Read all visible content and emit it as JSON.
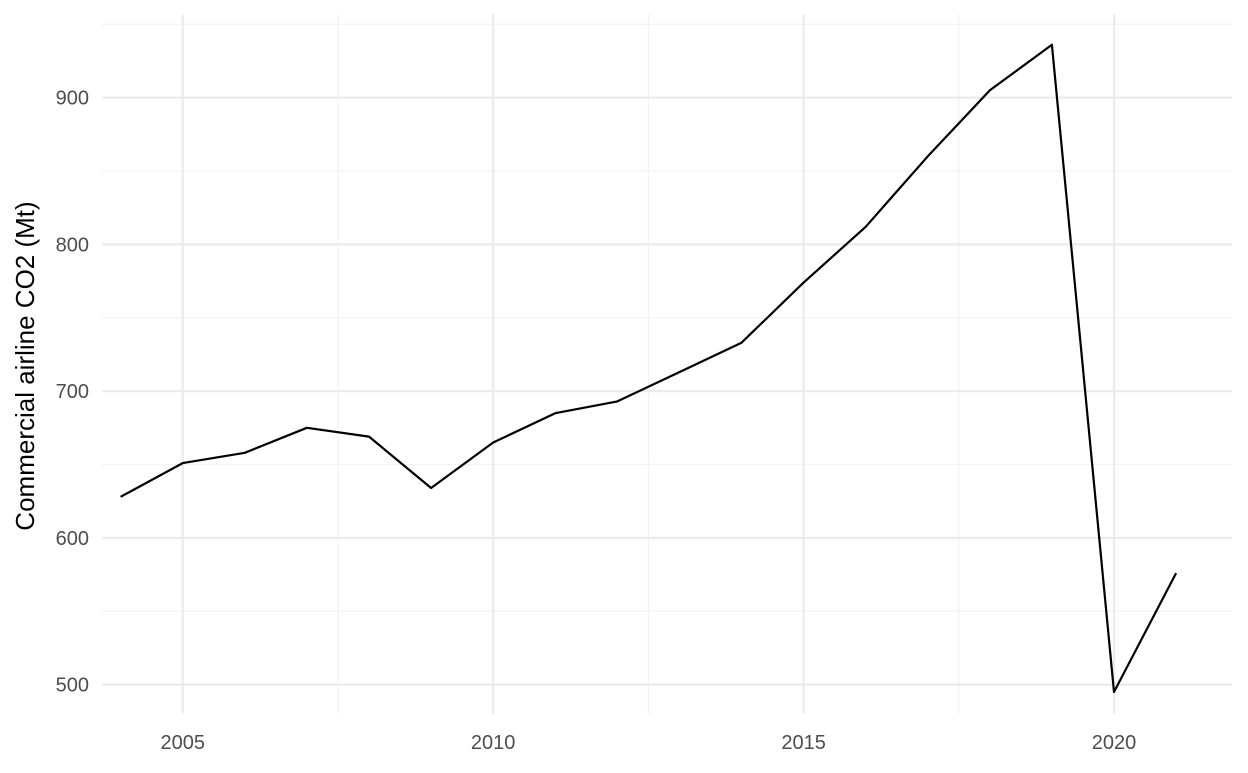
{
  "chart_data": {
    "type": "line",
    "xlabel": "",
    "ylabel": "Commercial airline CO2 (Mt)",
    "xlim": [
      2003.7,
      2021.9
    ],
    "ylim": [
      480,
      957
    ],
    "x_ticks": [
      2005,
      2010,
      2015,
      2020
    ],
    "x_tick_labels": [
      "2005",
      "2010",
      "2015",
      "2020"
    ],
    "x_minor_ticks": [
      2007.5,
      2012.5,
      2017.5
    ],
    "y_ticks": [
      500,
      600,
      700,
      800,
      900
    ],
    "y_tick_labels": [
      "500",
      "600",
      "700",
      "800",
      "900"
    ],
    "y_minor_ticks": [
      550,
      650,
      750,
      850,
      950
    ],
    "grid": true,
    "legend": "none",
    "colors": {
      "line": "#000000",
      "grid_major": "#ebebeb",
      "grid_minor": "#f2f2f2",
      "background": "#ffffff"
    },
    "series": [
      {
        "x": [
          2004,
          2005,
          2006,
          2007,
          2008,
          2009,
          2010,
          2011,
          2012,
          2013,
          2014,
          2015,
          2016,
          2017,
          2018,
          2019,
          2020,
          2021
        ],
        "values": [
          628,
          651,
          658,
          675,
          669,
          634,
          665,
          685,
          693,
          713,
          733,
          774,
          812,
          860,
          905,
          936,
          495,
          576
        ]
      }
    ]
  }
}
